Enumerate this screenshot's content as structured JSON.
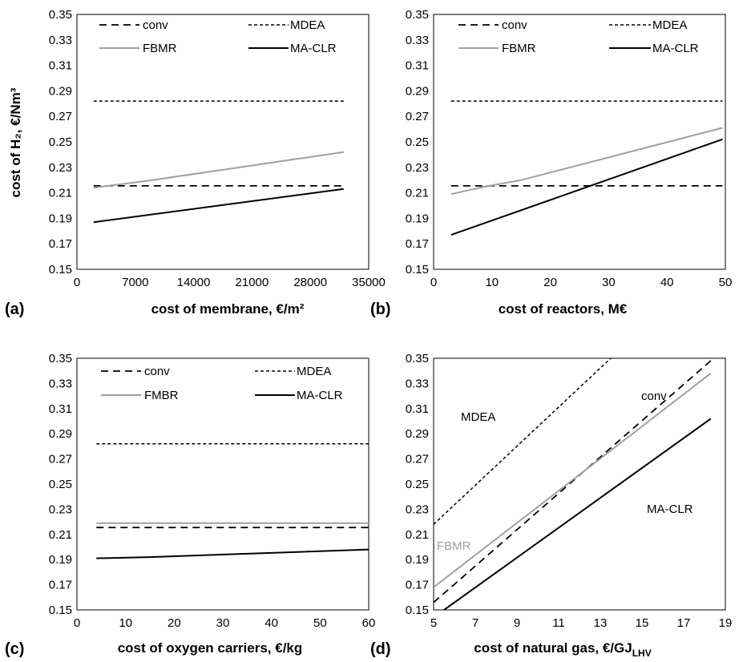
{
  "chart_data": [
    {
      "panel": "(a)",
      "type": "line",
      "xlabel": "cost of membrane, €/m²",
      "ylabel": "cost of H₂, €/Nm³",
      "xlim": [
        0,
        35000
      ],
      "ylim": [
        0.15,
        0.35
      ],
      "xticks": [
        "0",
        "7000",
        "14000",
        "21000",
        "28000",
        "35000"
      ],
      "yticks": [
        "0.15",
        "0.17",
        "0.19",
        "0.21",
        "0.23",
        "0.25",
        "0.27",
        "0.29",
        "0.31",
        "0.33",
        "0.35"
      ],
      "legend": [
        "conv",
        "MDEA",
        "FBMR",
        "MA-CLR"
      ],
      "series": [
        {
          "name": "conv",
          "style": "dashed-black",
          "x": [
            2000,
            32000
          ],
          "y": [
            0.2155,
            0.2155
          ]
        },
        {
          "name": "MDEA",
          "style": "dotted-black",
          "x": [
            2000,
            32000
          ],
          "y": [
            0.282,
            0.282
          ]
        },
        {
          "name": "FBMR",
          "style": "solid-gray",
          "x": [
            2000,
            8000,
            32000
          ],
          "y": [
            0.214,
            0.219,
            0.242
          ]
        },
        {
          "name": "MA-CLR",
          "style": "solid-black",
          "x": [
            2000,
            32000
          ],
          "y": [
            0.187,
            0.213
          ]
        }
      ]
    },
    {
      "panel": "(b)",
      "type": "line",
      "xlabel": "cost of reactors, M€",
      "ylabel": "",
      "xlim": [
        0,
        50
      ],
      "ylim": [
        0.15,
        0.35
      ],
      "xticks": [
        "0",
        "10",
        "20",
        "30",
        "40",
        "50"
      ],
      "yticks": [
        "0.15",
        "0.17",
        "0.19",
        "0.21",
        "0.23",
        "0.25",
        "0.27",
        "0.29",
        "0.31",
        "0.33",
        "0.35"
      ],
      "legend": [
        "conv",
        "MDEA",
        "FBMR",
        "MA-CLR"
      ],
      "series": [
        {
          "name": "conv",
          "style": "dashed-black",
          "x": [
            3,
            49.5
          ],
          "y": [
            0.2155,
            0.2155
          ]
        },
        {
          "name": "MDEA",
          "style": "dotted-black",
          "x": [
            3,
            49.5
          ],
          "y": [
            0.282,
            0.282
          ]
        },
        {
          "name": "FBMR",
          "style": "solid-gray",
          "x": [
            3,
            9,
            15,
            49.5
          ],
          "y": [
            0.209,
            0.215,
            0.22,
            0.261
          ]
        },
        {
          "name": "MA-CLR",
          "style": "solid-black",
          "x": [
            3,
            49.5
          ],
          "y": [
            0.177,
            0.252
          ]
        }
      ]
    },
    {
      "panel": "(c)",
      "type": "line",
      "xlabel": "cost of oxygen carriers, €/kg",
      "ylabel": "",
      "xlim": [
        0,
        60
      ],
      "ylim": [
        0.15,
        0.35
      ],
      "xticks": [
        "0",
        "10",
        "20",
        "30",
        "40",
        "50",
        "60"
      ],
      "yticks": [
        "0.15",
        "0.17",
        "0.19",
        "0.21",
        "0.23",
        "0.25",
        "0.27",
        "0.29",
        "0.31",
        "0.33",
        "0.35"
      ],
      "legend": [
        "conv",
        "MDEA",
        "FMBR",
        "MA-CLR"
      ],
      "series": [
        {
          "name": "conv",
          "style": "dashed-black",
          "x": [
            4,
            60
          ],
          "y": [
            0.2155,
            0.2155
          ]
        },
        {
          "name": "MDEA",
          "style": "dotted-black",
          "x": [
            4,
            60
          ],
          "y": [
            0.282,
            0.282
          ]
        },
        {
          "name": "FMBR",
          "style": "solid-gray",
          "x": [
            4,
            60
          ],
          "y": [
            0.219,
            0.219
          ]
        },
        {
          "name": "MA-CLR",
          "style": "solid-black",
          "x": [
            4,
            15,
            60
          ],
          "y": [
            0.191,
            0.192,
            0.198
          ]
        }
      ]
    },
    {
      "panel": "(d)",
      "type": "line",
      "xlabel": "cost of natural gas, €/GJ",
      "xlabel_sub": "LHV",
      "ylabel": "",
      "xlim": [
        5,
        19
      ],
      "ylim": [
        0.15,
        0.35
      ],
      "xticks": [
        "5",
        "7",
        "9",
        "11",
        "13",
        "15",
        "17",
        "19"
      ],
      "yticks": [
        "0.15",
        "0.17",
        "0.19",
        "0.21",
        "0.23",
        "0.25",
        "0.27",
        "0.29",
        "0.31",
        "0.33",
        "0.35"
      ],
      "annotations": [
        "MDEA",
        "conv",
        "FBMR",
        "MA-CLR"
      ],
      "series": [
        {
          "name": "MDEA",
          "style": "dotted-black",
          "x": [
            5,
            13.5
          ],
          "y": [
            0.218,
            0.35
          ]
        },
        {
          "name": "conv",
          "style": "dashed-black",
          "x": [
            5,
            18.3
          ],
          "y": [
            0.156,
            0.348
          ]
        },
        {
          "name": "FBMR",
          "style": "solid-gray",
          "x": [
            5,
            18.3
          ],
          "y": [
            0.168,
            0.338
          ]
        },
        {
          "name": "MA-CLR",
          "style": "solid-black",
          "x": [
            5.5,
            18.3
          ],
          "y": [
            0.15,
            0.302
          ]
        }
      ]
    }
  ]
}
